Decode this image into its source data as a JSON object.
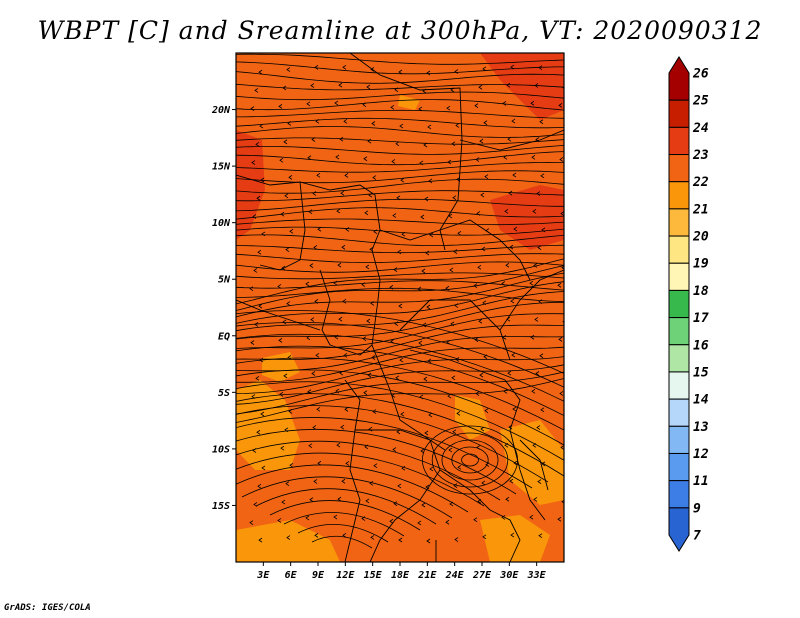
{
  "title": "WBPT [C] and Sreamline at 300hPa, VT: 2020090312",
  "credit": "GrADS: IGES/COLA",
  "map": {
    "lon_range": [
      0,
      36
    ],
    "lat_range": [
      -20,
      25
    ],
    "lat_ticks": [
      "20N",
      "15N",
      "10N",
      "5N",
      "EQ",
      "5S",
      "10S",
      "15S"
    ],
    "lon_ticks": [
      "3E",
      "6E",
      "9E",
      "12E",
      "15E",
      "18E",
      "21E",
      "24E",
      "27E",
      "30E",
      "33E"
    ],
    "base_fill": "#f06414",
    "dominant_level": 23
  },
  "colorbar": {
    "labels": [
      "26",
      "25",
      "24",
      "23",
      "22",
      "21",
      "20",
      "19",
      "18",
      "17",
      "16",
      "15",
      "14",
      "13",
      "12",
      "11",
      "9",
      "7"
    ],
    "colors": [
      "#a50000",
      "#c81e00",
      "#e63c14",
      "#f06414",
      "#fa960a",
      "#fdb93c",
      "#fee682",
      "#fff5b4",
      "#37b94b",
      "#6ed278",
      "#afe6a5",
      "#e6f7f0",
      "#b4d7fa",
      "#82b9f5",
      "#5a9bf0",
      "#3c7de6",
      "#2864d2"
    ]
  }
}
